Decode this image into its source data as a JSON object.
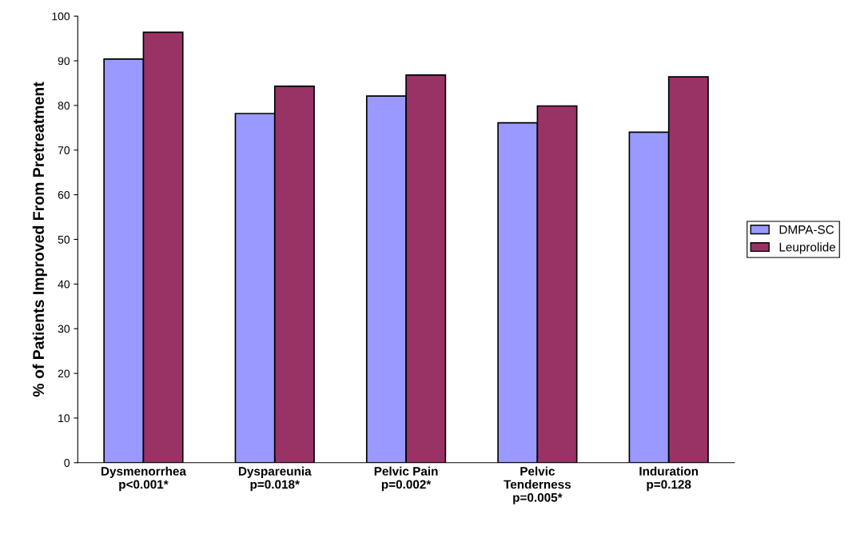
{
  "chart_data": {
    "type": "bar",
    "ylabel": "% of Patients Improved From Pretreatment",
    "categories": [
      "Dysmenorrhea\np<0.001*",
      "Dyspareunia\np=0.018*",
      "Pelvic Pain\np=0.002*",
      "Pelvic\nTenderness\np=0.005*",
      "Induration\np=0.128"
    ],
    "series": [
      {
        "name": "DMPA-SC",
        "color": "#9999ff",
        "values": [
          90.4,
          78.2,
          82.1,
          76.1,
          74.0
        ]
      },
      {
        "name": "Leuprolide",
        "color": "#993366",
        "values": [
          96.4,
          84.3,
          86.8,
          79.9,
          86.4
        ]
      }
    ],
    "ylim": [
      0,
      100
    ],
    "yticks": [
      0,
      10,
      20,
      30,
      40,
      50,
      60,
      70,
      80,
      90,
      100
    ],
    "grid": false,
    "legend": "right"
  }
}
